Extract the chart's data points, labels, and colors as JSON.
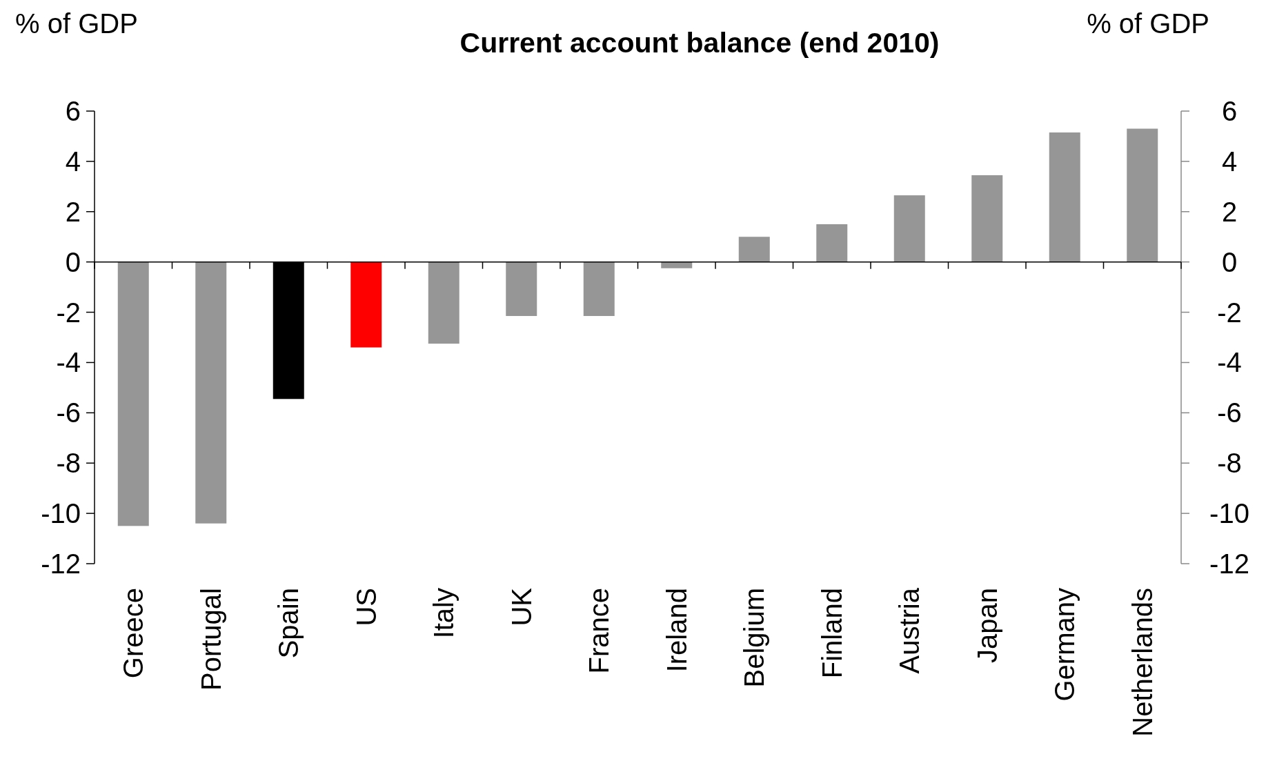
{
  "chart_data": {
    "type": "bar",
    "title": "Current account balance (end 2010)",
    "ylabel": "% of GDP",
    "y2label": "% of GDP",
    "categories": [
      "Greece",
      "Portugal",
      "Spain",
      "US",
      "Italy",
      "UK",
      "France",
      "Ireland",
      "Belgium",
      "Finland",
      "Austria",
      "Japan",
      "Germany",
      "Netherlands"
    ],
    "values": [
      -10.5,
      -10.4,
      -5.45,
      -3.4,
      -3.25,
      -2.15,
      -2.15,
      -0.25,
      1.0,
      1.5,
      2.65,
      3.45,
      5.15,
      5.3
    ],
    "colors": [
      "#969696",
      "#969696",
      "#000000",
      "#ff0000",
      "#969696",
      "#969696",
      "#969696",
      "#969696",
      "#969696",
      "#969696",
      "#969696",
      "#969696",
      "#969696",
      "#969696"
    ],
    "ylim": [
      -12,
      6
    ],
    "yticks": [
      -12,
      -10,
      -8,
      -6,
      -4,
      -2,
      0,
      2,
      4,
      6
    ],
    "y2lim": [
      -12,
      6
    ],
    "y2ticks": [
      -12,
      -10,
      -8,
      -6,
      -4,
      -2,
      0,
      2,
      4,
      6
    ],
    "tick_labels": true
  }
}
